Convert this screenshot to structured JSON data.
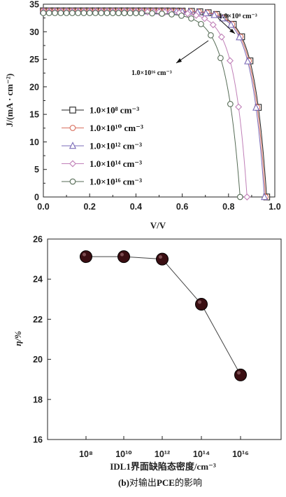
{
  "chart_data": [
    {
      "type": "line",
      "xlabel": "V/V",
      "ylabel": "J/(mA · cm⁻²)",
      "xlim": [
        0,
        1.0
      ],
      "ylim": [
        0,
        35
      ],
      "xticks": [
        "0.0",
        "0.2",
        "0.4",
        "0.6",
        "0.8",
        "1.0"
      ],
      "yticks": [
        "0",
        "5",
        "10",
        "15",
        "20",
        "25",
        "30",
        "35"
      ],
      "grid": false,
      "legend_position": "bottom-left",
      "annotations": [
        {
          "text": "1.0×10⁸ cm⁻³"
        },
        {
          "text": "1.0×10¹⁶ cm⁻³"
        }
      ],
      "series": [
        {
          "name": "1.0×10⁸ cm⁻³",
          "marker": "square",
          "color": "#222222",
          "Jsc": 33.8,
          "Voc": 0.965,
          "knee": 0.64,
          "shape": 0.055
        },
        {
          "name": "1.0×10¹⁰ cm⁻³",
          "marker": "circle",
          "color": "#d9705f",
          "Jsc": 33.8,
          "Voc": 0.96,
          "knee": 0.635,
          "shape": 0.055
        },
        {
          "name": "1.0×10¹² cm⁻³",
          "marker": "triangle",
          "color": "#7b6bb8",
          "Jsc": 33.7,
          "Voc": 0.955,
          "knee": 0.63,
          "shape": 0.055
        },
        {
          "name": "1.0×10¹⁴ cm⁻³",
          "marker": "diamond",
          "color": "#c080b8",
          "Jsc": 33.6,
          "Voc": 0.88,
          "knee": 0.55,
          "shape": 0.055
        },
        {
          "name": "1.0×10¹⁶ cm⁻³",
          "marker": "circle",
          "color": "#556b55",
          "Jsc": 33.4,
          "Voc": 0.85,
          "knee": 0.47,
          "shape": 0.06
        }
      ]
    },
    {
      "type": "line",
      "xlabel": "IDL1界面缺陷态密度/cm⁻³",
      "ylabel": "η/%",
      "categories": [
        "10⁸",
        "10¹⁰",
        "10¹²",
        "10¹⁴",
        "10¹⁶"
      ],
      "values": [
        25.12,
        25.12,
        25.0,
        22.75,
        19.22
      ],
      "ylim": [
        16,
        26
      ],
      "yticks": [
        "16",
        "18",
        "20",
        "22",
        "24",
        "26"
      ],
      "marker": "filled-circle",
      "marker_color": "#3a0e12",
      "grid": false
    }
  ],
  "caption": {
    "prefix": "(b)",
    "text": "对输出",
    "bold": "PCE",
    "suffix": "的影响"
  }
}
